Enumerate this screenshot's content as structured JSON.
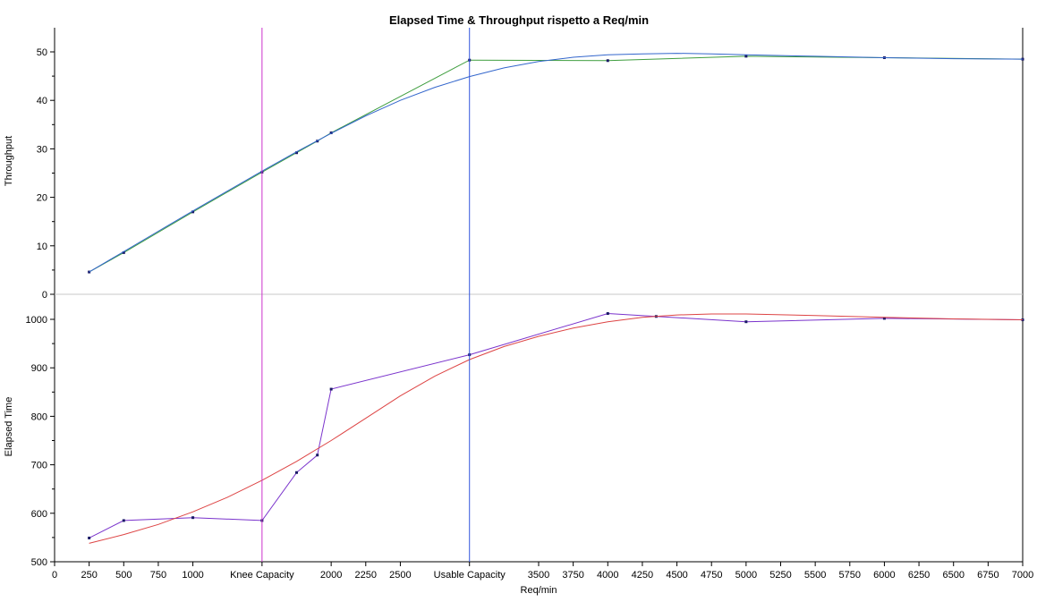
{
  "chart_data": {
    "type": "line",
    "title": "Elapsed Time & Throughput rispetto a Req/min",
    "xlabel": "Req/min",
    "xlim": [
      0,
      7000
    ],
    "x_tick_labels": [
      {
        "x": 0,
        "label": "0"
      },
      {
        "x": 250,
        "label": "250"
      },
      {
        "x": 500,
        "label": "500"
      },
      {
        "x": 750,
        "label": "750"
      },
      {
        "x": 1000,
        "label": "1000"
      },
      {
        "x": 1500,
        "label": "Knee Capacity"
      },
      {
        "x": 2000,
        "label": "2000"
      },
      {
        "x": 2250,
        "label": "2250"
      },
      {
        "x": 2500,
        "label": "2500"
      },
      {
        "x": 3000,
        "label": "Usable Capacity"
      },
      {
        "x": 3500,
        "label": "3500"
      },
      {
        "x": 3750,
        "label": "3750"
      },
      {
        "x": 4000,
        "label": "4000"
      },
      {
        "x": 4250,
        "label": "4250"
      },
      {
        "x": 4500,
        "label": "4500"
      },
      {
        "x": 4750,
        "label": "4750"
      },
      {
        "x": 5000,
        "label": "5000"
      },
      {
        "x": 5250,
        "label": "5250"
      },
      {
        "x": 5500,
        "label": "5500"
      },
      {
        "x": 5750,
        "label": "5750"
      },
      {
        "x": 6000,
        "label": "6000"
      },
      {
        "x": 6250,
        "label": "6250"
      },
      {
        "x": 6500,
        "label": "6500"
      },
      {
        "x": 6750,
        "label": "6750"
      },
      {
        "x": 7000,
        "label": "7000"
      }
    ],
    "vertical_markers": [
      {
        "x": 1500,
        "label": "Knee Capacity",
        "color": "#cc33cc"
      },
      {
        "x": 3000,
        "label": "Usable Capacity",
        "color": "#3355dd"
      }
    ],
    "grid": false,
    "panels": [
      {
        "ylabel": "Throughput",
        "ylim": [
          0,
          55
        ],
        "yticks": [
          0,
          10,
          20,
          30,
          40,
          50
        ],
        "series": [
          {
            "kind": "line",
            "color": "#3f9e3f",
            "points": [
              [
                250,
                4.6
              ],
              [
                500,
                8.6
              ],
              [
                1000,
                17.0
              ],
              [
                1500,
                25.2
              ],
              [
                1750,
                29.2
              ],
              [
                1900,
                31.6
              ],
              [
                2000,
                33.3
              ],
              [
                3000,
                48.3
              ],
              [
                4000,
                48.2
              ],
              [
                5000,
                49.1
              ],
              [
                6000,
                48.8
              ],
              [
                7000,
                48.5
              ]
            ]
          },
          {
            "kind": "fit",
            "color": "#3366cc",
            "points": [
              [
                250,
                4.6
              ],
              [
                500,
                8.8
              ],
              [
                750,
                13.0
              ],
              [
                1000,
                17.2
              ],
              [
                1250,
                21.3
              ],
              [
                1500,
                25.4
              ],
              [
                1750,
                29.4
              ],
              [
                2000,
                33.2
              ],
              [
                2250,
                36.8
              ],
              [
                2500,
                40.0
              ],
              [
                2750,
                42.7
              ],
              [
                3000,
                44.9
              ],
              [
                3250,
                46.7
              ],
              [
                3500,
                48.0
              ],
              [
                3750,
                48.9
              ],
              [
                4000,
                49.4
              ],
              [
                4250,
                49.6
              ],
              [
                4500,
                49.7
              ],
              [
                4750,
                49.6
              ],
              [
                5000,
                49.4
              ],
              [
                5500,
                49.1
              ],
              [
                6000,
                48.8
              ],
              [
                6500,
                48.6
              ],
              [
                7000,
                48.5
              ]
            ]
          }
        ]
      },
      {
        "ylabel": "Elapsed Time",
        "ylim": [
          500,
          1025
        ],
        "yticks": [
          500,
          600,
          700,
          800,
          900,
          1000
        ],
        "series": [
          {
            "kind": "line",
            "color": "#7a33cc",
            "points": [
              [
                250,
                549
              ],
              [
                500,
                585
              ],
              [
                1000,
                591
              ],
              [
                1500,
                585
              ],
              [
                1750,
                684
              ],
              [
                1900,
                720
              ],
              [
                2000,
                856
              ],
              [
                3000,
                927
              ],
              [
                4000,
                1012
              ],
              [
                4350,
                1006
              ],
              [
                5000,
                995
              ],
              [
                6000,
                1002
              ],
              [
                7000,
                999
              ]
            ]
          },
          {
            "kind": "fit",
            "color": "#dd4444",
            "points": [
              [
                250,
                538
              ],
              [
                500,
                556
              ],
              [
                750,
                577
              ],
              [
                1000,
                603
              ],
              [
                1250,
                633
              ],
              [
                1500,
                668
              ],
              [
                1750,
                707
              ],
              [
                2000,
                750
              ],
              [
                2250,
                796
              ],
              [
                2500,
                842
              ],
              [
                2750,
                883
              ],
              [
                3000,
                917
              ],
              [
                3250,
                944
              ],
              [
                3500,
                965
              ],
              [
                3750,
                982
              ],
              [
                4000,
                995
              ],
              [
                4250,
                1004
              ],
              [
                4500,
                1009
              ],
              [
                4750,
                1011
              ],
              [
                5000,
                1011
              ],
              [
                5500,
                1008
              ],
              [
                6000,
                1004
              ],
              [
                6500,
                1001
              ],
              [
                7000,
                999
              ]
            ]
          }
        ]
      }
    ]
  }
}
